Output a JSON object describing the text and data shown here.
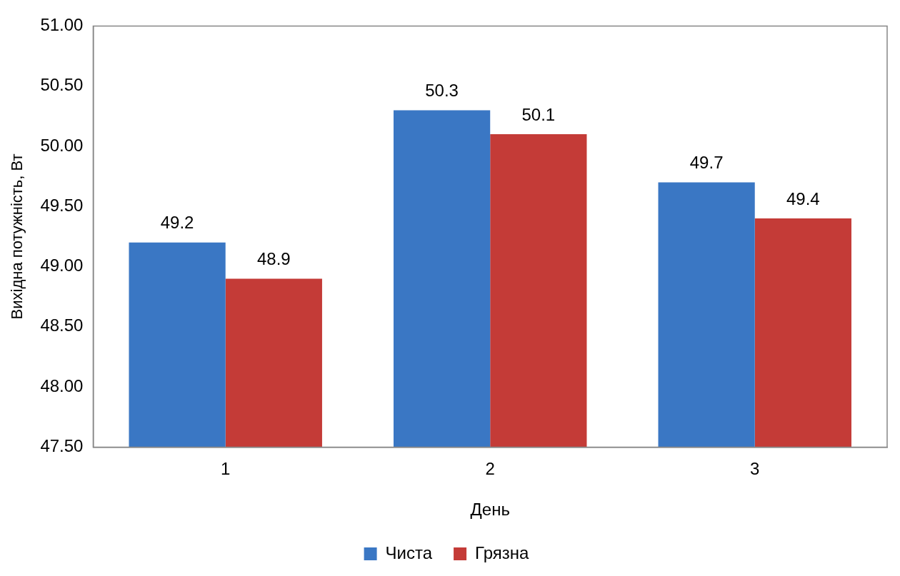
{
  "chart_data": {
    "type": "bar",
    "xlabel": "День",
    "ylabel": "Вихідна потужність, Вт",
    "categories": [
      "1",
      "2",
      "3"
    ],
    "series": [
      {
        "name": "Чиста",
        "color": "#3a77c4",
        "values": [
          49.2,
          50.3,
          49.7
        ]
      },
      {
        "name": "Грязна",
        "color": "#c43b37",
        "values": [
          48.9,
          50.1,
          49.4
        ]
      }
    ],
    "ylim": [
      47.5,
      51
    ],
    "yticks": [
      {
        "value": 47.5,
        "label": "47.50"
      },
      {
        "value": 48,
        "label": "48.00"
      },
      {
        "value": 48.5,
        "label": "48.50"
      },
      {
        "value": 49,
        "label": "49.00"
      },
      {
        "value": 49.5,
        "label": "49.50"
      },
      {
        "value": 50,
        "label": "50.00"
      },
      {
        "value": 50.5,
        "label": "50.50"
      },
      {
        "value": 51,
        "label": "51.00"
      }
    ],
    "grid": false,
    "legend": "bottom",
    "data_labels": true
  }
}
